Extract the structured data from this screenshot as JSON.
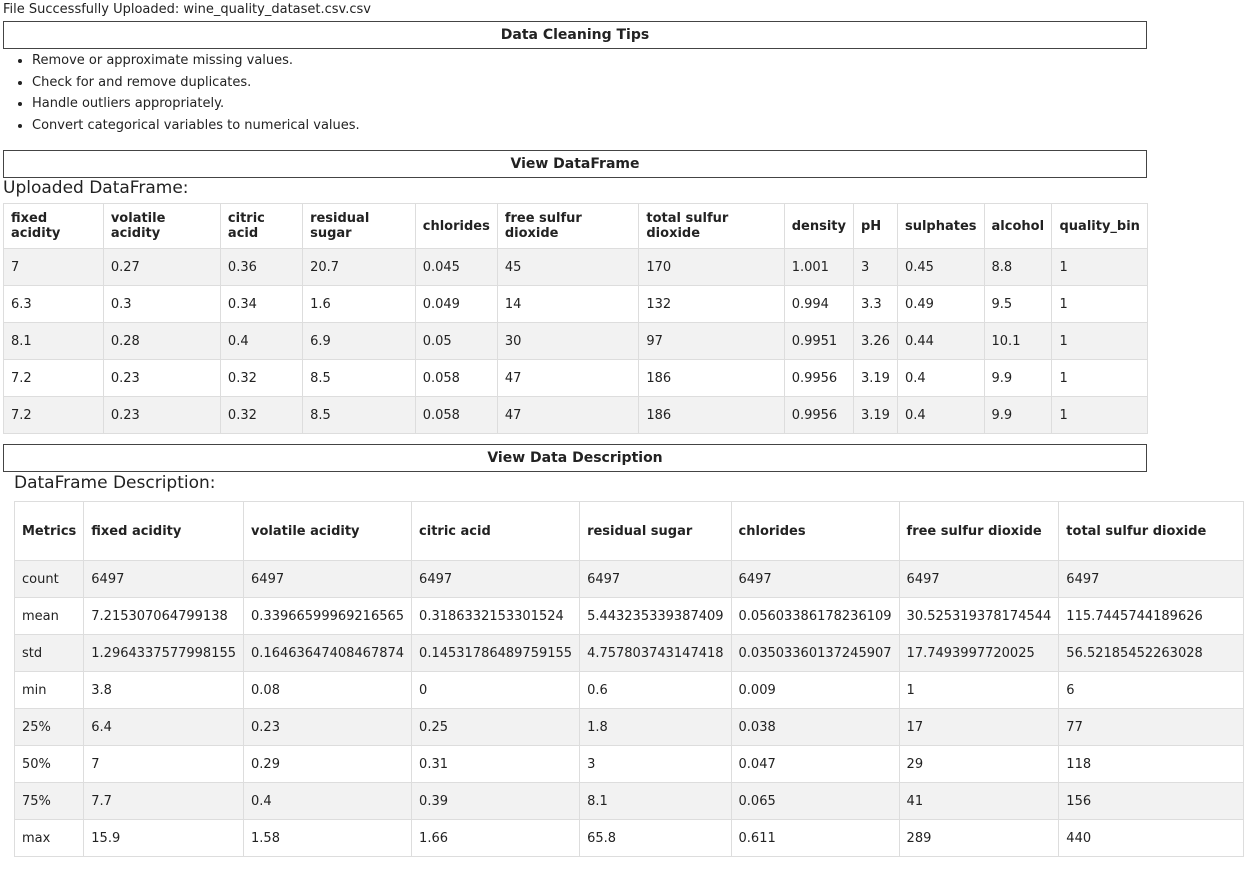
{
  "status": "File Successfully Uploaded: wine_quality_dataset.csv.csv",
  "tips": {
    "title": "Data Cleaning Tips",
    "items": [
      "Remove or approximate missing values.",
      "Check for and remove duplicates.",
      "Handle outliers appropriately.",
      "Convert categorical variables to numerical values."
    ]
  },
  "dataframe": {
    "button": "View DataFrame",
    "heading": "Uploaded DataFrame:",
    "table": {
      "columns": [
        "fixed acidity",
        "volatile acidity",
        "citric acid",
        "residual sugar",
        "chlorides",
        "free sulfur dioxide",
        "total sulfur dioxide",
        "density",
        "pH",
        "sulphates",
        "alcohol",
        "quality_bin"
      ],
      "rows": [
        [
          "7",
          "0.27",
          "0.36",
          "20.7",
          "0.045",
          "45",
          "170",
          "1.001",
          "3",
          "0.45",
          "8.8",
          "1"
        ],
        [
          "6.3",
          "0.3",
          "0.34",
          "1.6",
          "0.049",
          "14",
          "132",
          "0.994",
          "3.3",
          "0.49",
          "9.5",
          "1"
        ],
        [
          "8.1",
          "0.28",
          "0.4",
          "6.9",
          "0.05",
          "30",
          "97",
          "0.9951",
          "3.26",
          "0.44",
          "10.1",
          "1"
        ],
        [
          "7.2",
          "0.23",
          "0.32",
          "8.5",
          "0.058",
          "47",
          "186",
          "0.9956",
          "3.19",
          "0.4",
          "9.9",
          "1"
        ],
        [
          "7.2",
          "0.23",
          "0.32",
          "8.5",
          "0.058",
          "47",
          "186",
          "0.9956",
          "3.19",
          "0.4",
          "9.9",
          "1"
        ]
      ]
    }
  },
  "description": {
    "button": "View Data Description",
    "heading": "DataFrame Description:",
    "table": {
      "columns": [
        "Metrics",
        "fixed acidity",
        "volatile acidity",
        "citric acid",
        "residual sugar",
        "chlorides",
        "free sulfur dioxide",
        "total sulfur dioxide"
      ],
      "rows": [
        [
          "count",
          "6497",
          "6497",
          "6497",
          "6497",
          "6497",
          "6497",
          "6497"
        ],
        [
          "mean",
          "7.215307064799138",
          "0.33966599969216565",
          "0.3186332153301524",
          "5.443235339387409",
          "0.05603386178236109",
          "30.525319378174544",
          "115.7445744189626"
        ],
        [
          "std",
          "1.2964337577998155",
          "0.16463647408467874",
          "0.14531786489759155",
          "4.757803743147418",
          "0.03503360137245907",
          "17.7493997720025",
          "56.52185452263028"
        ],
        [
          "min",
          "3.8",
          "0.08",
          "0",
          "0.6",
          "0.009",
          "1",
          "6"
        ],
        [
          "25%",
          "6.4",
          "0.23",
          "0.25",
          "1.8",
          "0.038",
          "17",
          "77"
        ],
        [
          "50%",
          "7",
          "0.29",
          "0.31",
          "3",
          "0.047",
          "29",
          "118"
        ],
        [
          "75%",
          "7.7",
          "0.4",
          "0.39",
          "8.1",
          "0.065",
          "41",
          "156"
        ],
        [
          "max",
          "15.9",
          "1.58",
          "1.66",
          "65.8",
          "0.611",
          "289",
          "440"
        ]
      ]
    }
  }
}
